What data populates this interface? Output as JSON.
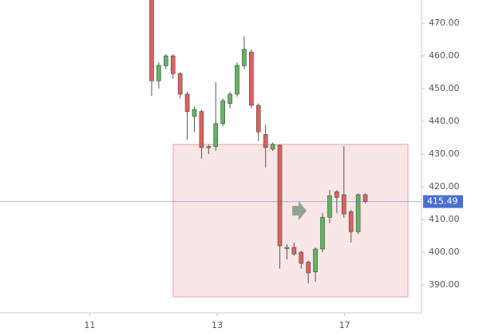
{
  "chart_data": {
    "type": "candlestick",
    "x": [
      0,
      1,
      2,
      3,
      4,
      5,
      6,
      7,
      8,
      9,
      10,
      11,
      12,
      13,
      14,
      15,
      16,
      17,
      18,
      19,
      20,
      21,
      22,
      23,
      24,
      25,
      26,
      27,
      28,
      29,
      30
    ],
    "open": [
      480,
      452.4,
      457,
      460,
      454.6,
      448.3,
      441.5,
      443,
      432.3,
      432.3,
      439.3,
      445.4,
      448.3,
      457,
      461.2,
      444.9,
      436,
      431.5,
      432.7,
      401.5,
      401.5,
      400,
      397,
      394,
      401,
      410.7,
      418.5,
      417.6,
      412.4,
      406.3,
      417.6
    ],
    "high": [
      485,
      458,
      460.5,
      460.5,
      455,
      449,
      444.5,
      443.5,
      433,
      452,
      447,
      449,
      458,
      466,
      462,
      445.5,
      439,
      433.5,
      433,
      402.5,
      403,
      400.5,
      397.5,
      401.5,
      412,
      419,
      419,
      432.4,
      413,
      418,
      418
    ],
    "low": [
      447.8,
      450,
      456,
      453,
      447,
      434.4,
      436.8,
      428.5,
      430,
      431,
      438.5,
      444,
      447.5,
      456,
      444,
      434,
      425.9,
      431,
      395,
      397.8,
      399,
      395,
      390.5,
      391,
      400,
      409,
      412,
      410.5,
      403,
      405.5,
      415
    ],
    "close": [
      452.4,
      457.1,
      460,
      454.6,
      448.3,
      443,
      443.6,
      432,
      432.3,
      439.3,
      446.3,
      448.3,
      457.1,
      462,
      444.9,
      436.8,
      432,
      433,
      402,
      401.5,
      399.5,
      396.6,
      393.7,
      401,
      410.7,
      417.3,
      416.8,
      411.7,
      406.3,
      417.6,
      415.49
    ],
    "up_color": "#5cb85c",
    "down_color": "#e0625c",
    "xlim": [
      -21.3,
      37.9
    ],
    "xticks": [
      {
        "value": -8.7,
        "label": "11"
      },
      {
        "value": 9.2,
        "label": "13"
      },
      {
        "value": 27.1,
        "label": "17"
      }
    ],
    "ylim": [
      381.5,
      477.07
    ],
    "yticks": [
      {
        "value": 390,
        "label": "390.00"
      },
      {
        "value": 400,
        "label": "400.00"
      },
      {
        "value": 410,
        "label": "410.00"
      },
      {
        "value": 420,
        "label": "420.00"
      },
      {
        "value": 430,
        "label": "430.00"
      },
      {
        "value": 440,
        "label": "440.00"
      },
      {
        "value": 450,
        "label": "450.00"
      },
      {
        "value": 460,
        "label": "460.00"
      },
      {
        "value": 470,
        "label": "470.00"
      }
    ],
    "last_price": 415.49,
    "last_price_color": "#4a6fd0"
  }
}
